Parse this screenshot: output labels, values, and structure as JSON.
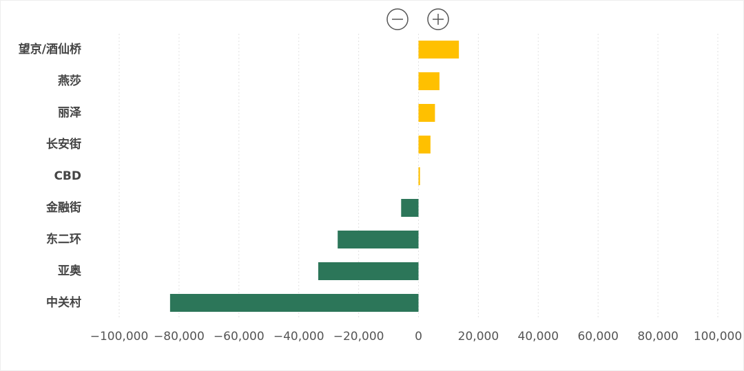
{
  "chart_data": {
    "type": "hbar",
    "categories": [
      "望京/酒仙桥",
      "燕莎",
      "丽泽",
      "长安街",
      "CBD",
      "金融街",
      "东二环",
      "亚奥",
      "中关村"
    ],
    "values": [
      13500,
      7000,
      5500,
      4000,
      500,
      -5800,
      -27000,
      -33500,
      -83000
    ],
    "positive_color": "#ffc000",
    "negative_color": "#2c7659",
    "xlim": [
      -100000,
      100000
    ],
    "xticks": [
      {
        "value": -100000,
        "label": "−100,000"
      },
      {
        "value": -80000,
        "label": "−80,000"
      },
      {
        "value": -60000,
        "label": "−60,000"
      },
      {
        "value": -40000,
        "label": "−40,000"
      },
      {
        "value": -20000,
        "label": "−20,000"
      },
      0,
      {
        "value": 20000,
        "label": "20,000"
      },
      {
        "value": 40000,
        "label": "40,000"
      },
      {
        "value": 60000,
        "label": "60,000"
      },
      {
        "value": 80000,
        "label": "80,000"
      },
      {
        "value": 100000,
        "label": "100,000"
      }
    ],
    "grid": true
  }
}
